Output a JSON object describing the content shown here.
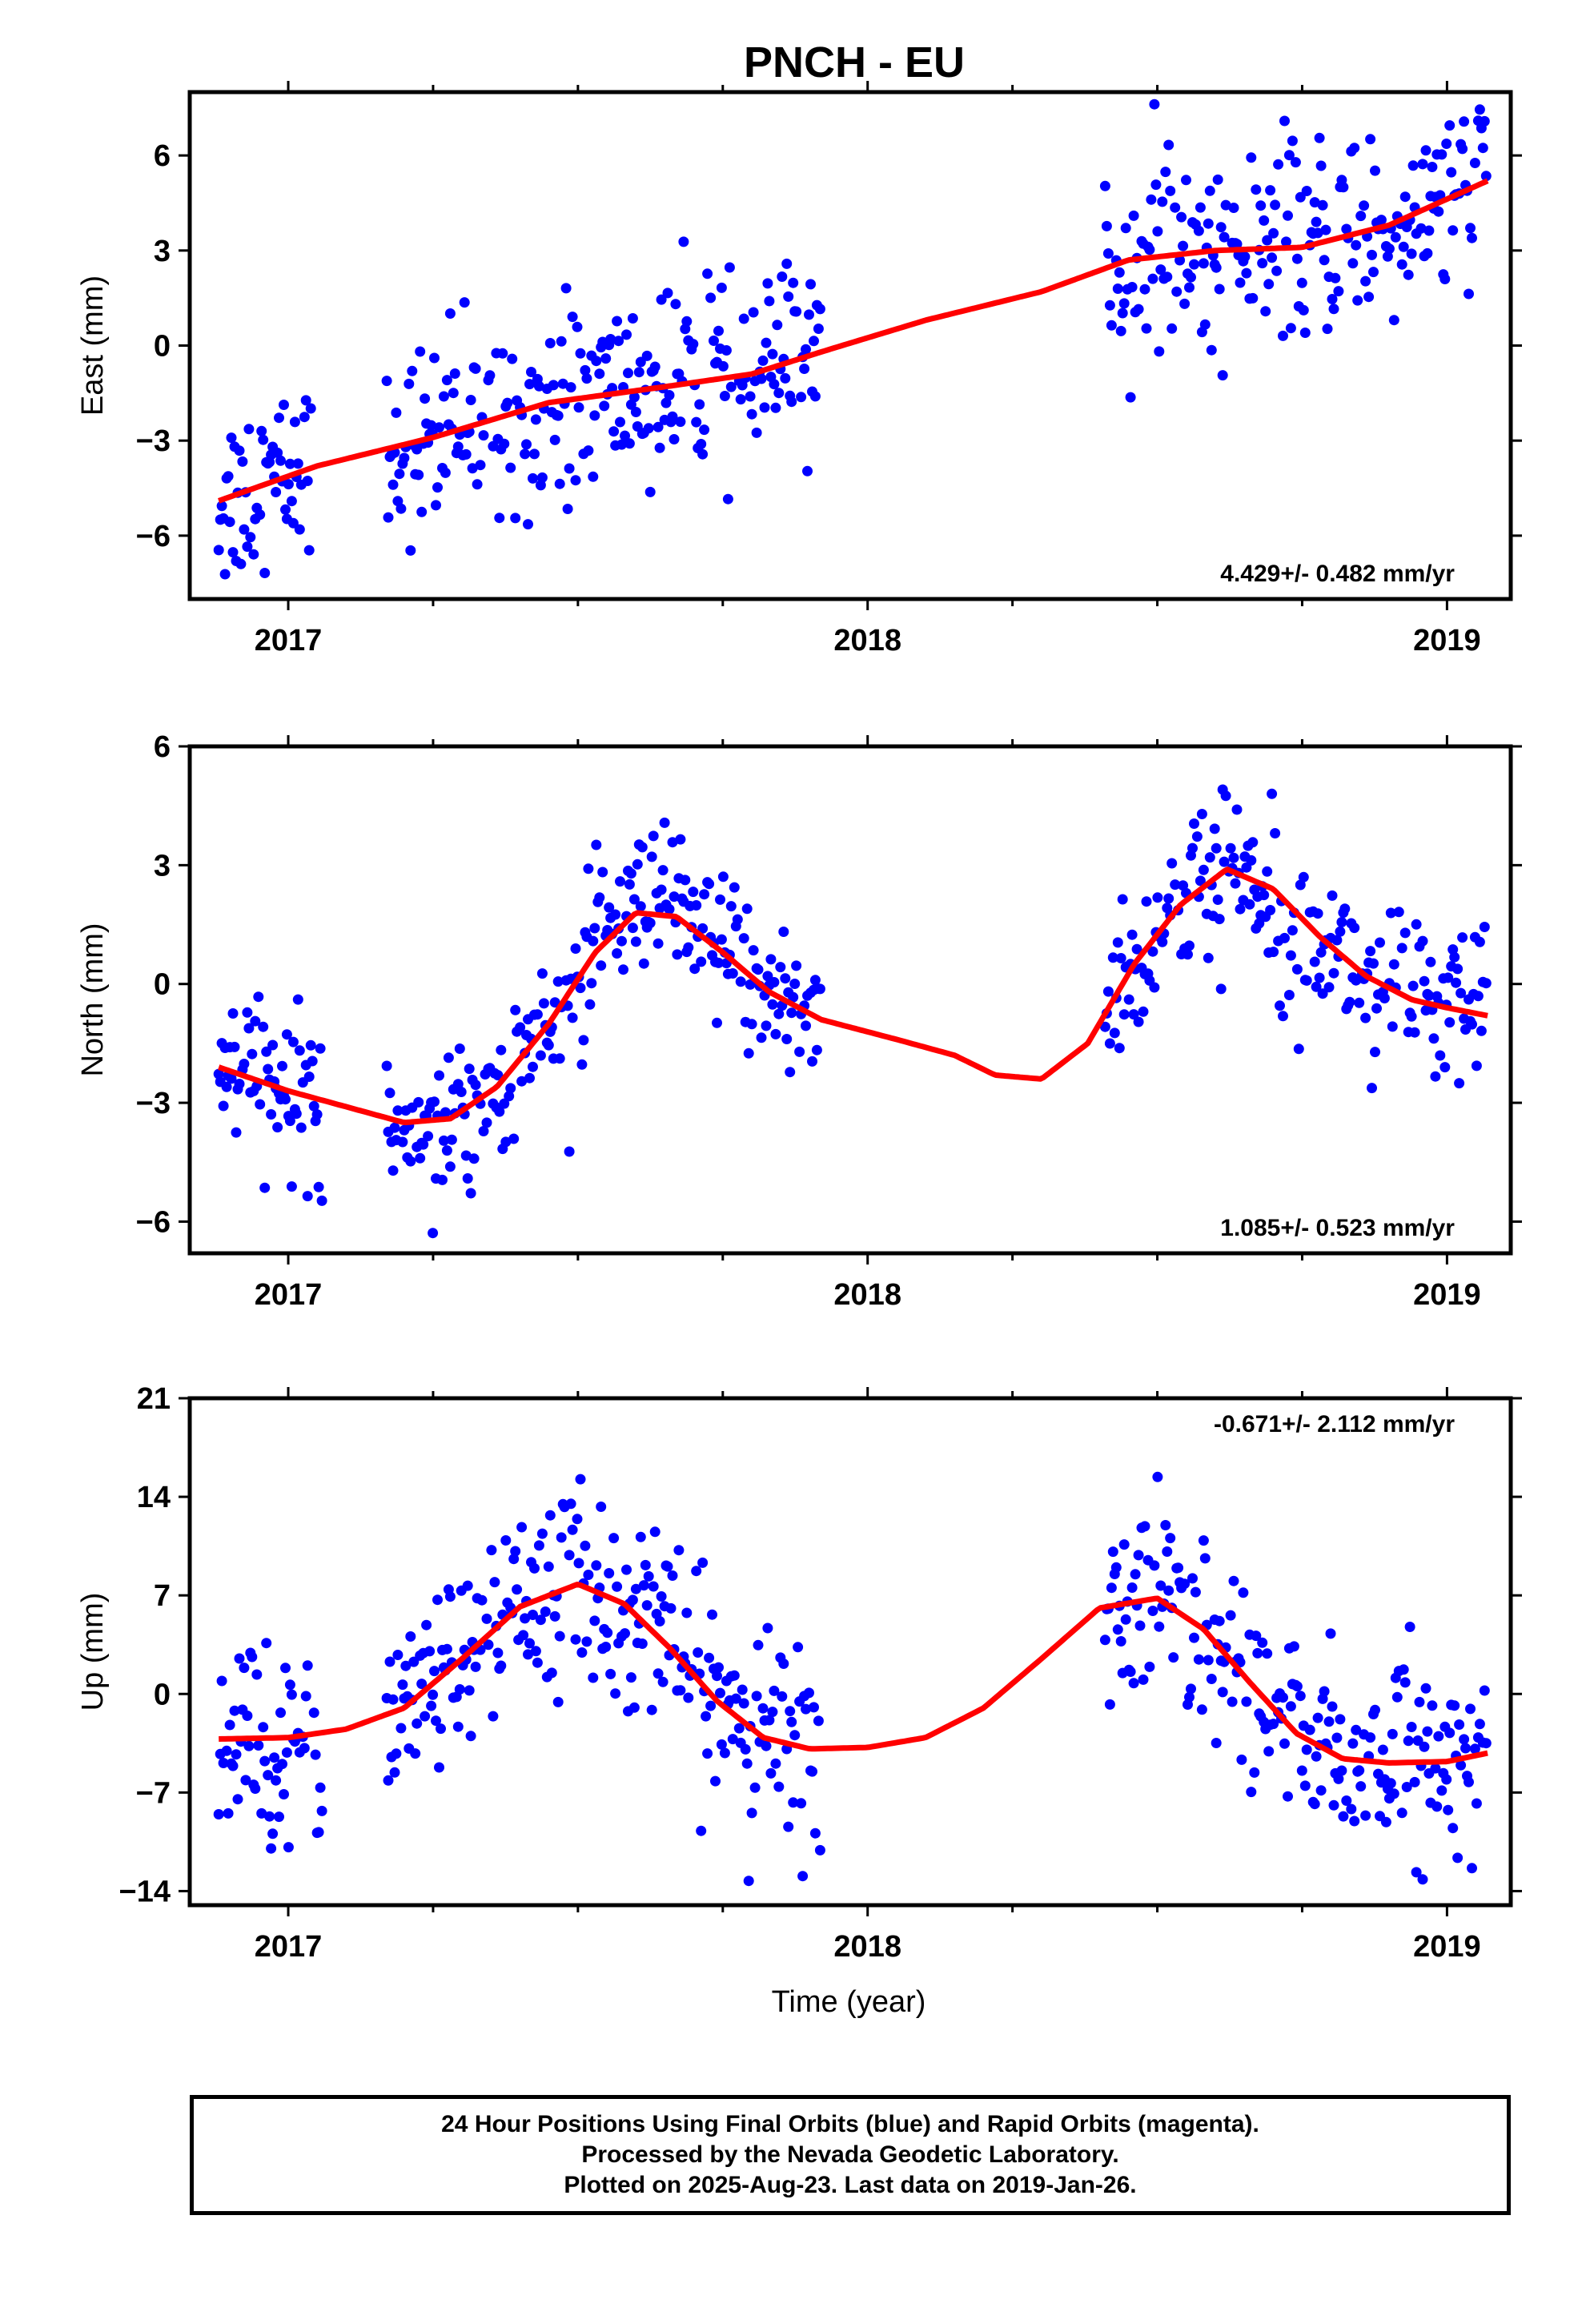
{
  "title": "PNCH - EU",
  "x_axis": {
    "label": "Time (year)",
    "ticks": [
      "2017",
      "2018",
      "2019"
    ]
  },
  "colors": {
    "final_orbits": "#0000ff",
    "fit": "#ff0000",
    "frame": "#000000"
  },
  "footer": {
    "line1": "24 Hour Positions Using Final Orbits (blue) and Rapid Orbits (magenta).",
    "line2": "Processed by the Nevada Geodetic Laboratory.",
    "line3": "Plotted on 2025-Aug-23. Last data on 2019-Jan-26."
  },
  "chart_data": [
    {
      "type": "scatter",
      "component": "east",
      "ylabel": "East (mm)",
      "xlim": [
        2016.83,
        2019.11
      ],
      "ylim": [
        -8,
        8
      ],
      "yticks": [
        -6,
        -3,
        0,
        3,
        6
      ],
      "yticklabels": [
        "−6",
        "−3",
        "0",
        "3",
        "6"
      ],
      "rate": "4.429+/- 0.482 mm/yr",
      "rate_position": "bottom-right",
      "data_segments": [
        [
          2016.88,
          2017.04
        ],
        [
          2017.17,
          2017.92
        ],
        [
          2018.41,
          2019.07
        ]
      ],
      "scatter_sigma": 1.5,
      "fit": {
        "x": [
          2016.88,
          2017.05,
          2017.25,
          2017.45,
          2017.65,
          2017.8,
          2017.92,
          2018.1,
          2018.3,
          2018.45,
          2018.6,
          2018.75,
          2018.9,
          2019.07
        ],
        "y": [
          -4.9,
          -3.8,
          -2.9,
          -1.8,
          -1.3,
          -0.9,
          -0.2,
          0.8,
          1.7,
          2.7,
          3.0,
          3.1,
          3.8,
          5.2
        ]
      }
    },
    {
      "type": "scatter",
      "component": "north",
      "ylabel": "North (mm)",
      "xlim": [
        2016.83,
        2019.11
      ],
      "ylim": [
        -6.8,
        6
      ],
      "yticks": [
        -6,
        -3,
        0,
        3,
        6
      ],
      "yticklabels": [
        "−6",
        "−3",
        "0",
        "3",
        "6"
      ],
      "rate": "1.085+/- 0.523 mm/yr",
      "rate_position": "bottom-right",
      "data_segments": [
        [
          2016.88,
          2017.06
        ],
        [
          2017.17,
          2017.92
        ],
        [
          2018.41,
          2019.07
        ]
      ],
      "scatter_sigma": 1.0,
      "fit": {
        "x": [
          2016.88,
          2017.0,
          2017.1,
          2017.2,
          2017.28,
          2017.36,
          2017.45,
          2017.53,
          2017.6,
          2017.67,
          2017.75,
          2017.83,
          2017.92,
          2018.05,
          2018.15,
          2018.22,
          2018.3,
          2018.38,
          2018.46,
          2018.54,
          2018.62,
          2018.7,
          2018.78,
          2018.86,
          2018.94,
          2019.0,
          2019.07
        ],
        "y": [
          -2.1,
          -2.7,
          -3.1,
          -3.5,
          -3.4,
          -2.6,
          -1.0,
          0.8,
          1.8,
          1.7,
          0.8,
          -0.2,
          -0.9,
          -1.4,
          -1.8,
          -2.3,
          -2.4,
          -1.5,
          0.5,
          2.0,
          2.9,
          2.4,
          1.2,
          0.2,
          -0.4,
          -0.6,
          -0.8
        ]
      }
    },
    {
      "type": "scatter",
      "component": "up",
      "ylabel": "Up (mm)",
      "xlim": [
        2016.83,
        2019.11
      ],
      "ylim": [
        -15,
        21
      ],
      "yticks": [
        -14,
        -7,
        0,
        7,
        14,
        21
      ],
      "yticklabels": [
        "−14",
        "−7",
        "0",
        "7",
        "14",
        "21"
      ],
      "rate": "-0.671+/- 2.112 mm/yr",
      "rate_position": "top-right",
      "data_segments": [
        [
          2016.88,
          2017.06
        ],
        [
          2017.17,
          2017.92
        ],
        [
          2018.41,
          2019.07
        ]
      ],
      "scatter_sigma": 3.5,
      "fit": {
        "x": [
          2016.88,
          2017.0,
          2017.1,
          2017.2,
          2017.3,
          2017.4,
          2017.5,
          2017.58,
          2017.66,
          2017.74,
          2017.82,
          2017.9,
          2018.0,
          2018.1,
          2018.2,
          2018.3,
          2018.4,
          2018.5,
          2018.58,
          2018.66,
          2018.74,
          2018.82,
          2018.9,
          2019.0,
          2019.07
        ],
        "y": [
          -3.2,
          -3.1,
          -2.5,
          -1.0,
          2.5,
          6.2,
          7.8,
          6.4,
          3.2,
          -0.5,
          -3.1,
          -3.9,
          -3.8,
          -3.1,
          -1.0,
          2.5,
          6.1,
          6.8,
          4.6,
          0.8,
          -2.8,
          -4.6,
          -4.9,
          -4.8,
          -4.2
        ]
      }
    }
  ]
}
